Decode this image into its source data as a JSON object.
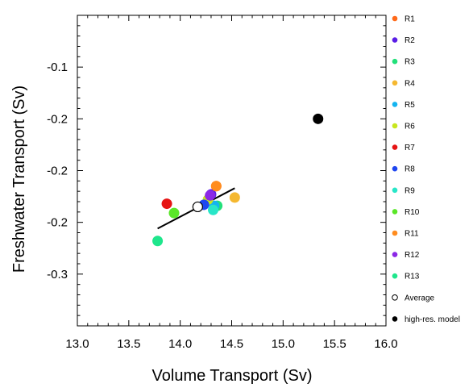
{
  "chart_data": {
    "type": "scatter",
    "xlabel": "Volume Transport (Sv)",
    "ylabel": "Freshwater Transport (Sv)",
    "xlim": [
      13.0,
      16.0
    ],
    "ylim": [
      -0.35,
      -0.05
    ],
    "xticks": [
      13.0,
      13.5,
      14.0,
      14.5,
      15.0,
      15.5,
      16.0
    ],
    "xtick_labels": [
      "13.0",
      "13.5",
      "14.0",
      "14.5",
      "15.0",
      "15.5",
      "16.0"
    ],
    "yticks": [
      -0.1,
      -0.2,
      -0.3
    ],
    "ytick_labels": [
      "-0.1",
      "-0.2",
      "-0.3"
    ],
    "yticks_labeled_extra": [
      -0.15,
      -0.25
    ],
    "ytick_labels_extra": [
      "-0.2",
      "-0.2"
    ],
    "grid": false,
    "legend_position": "right",
    "series": [
      {
        "name": "R1",
        "color": "#ff6a1a",
        "x": 14.35,
        "y": -0.215,
        "style": "filled"
      },
      {
        "name": "R2",
        "color": "#5a1ee6",
        "x": 14.3,
        "y": -0.223,
        "style": "filled"
      },
      {
        "name": "R3",
        "color": "#22e07a",
        "x": 14.36,
        "y": -0.234,
        "style": "filled"
      },
      {
        "name": "R4",
        "color": "#f5b830",
        "x": 14.53,
        "y": -0.226,
        "style": "filled"
      },
      {
        "name": "R5",
        "color": "#14b4f0",
        "x": 14.33,
        "y": -0.234,
        "style": "filled"
      },
      {
        "name": "R6",
        "color": "#c8e61e",
        "x": 14.27,
        "y": -0.228,
        "style": "filled"
      },
      {
        "name": "R7",
        "color": "#e61414",
        "x": 13.87,
        "y": -0.232,
        "style": "filled"
      },
      {
        "name": "R8",
        "color": "#1e46f0",
        "x": 14.23,
        "y": -0.233,
        "style": "filled"
      },
      {
        "name": "R9",
        "color": "#28e6c8",
        "x": 14.32,
        "y": -0.238,
        "style": "filled"
      },
      {
        "name": "R10",
        "color": "#5ae628",
        "x": 13.94,
        "y": -0.241,
        "style": "filled"
      },
      {
        "name": "R11",
        "color": "#ff8c1e",
        "x": 14.35,
        "y": -0.215,
        "style": "filled"
      },
      {
        "name": "R12",
        "color": "#8c28e6",
        "x": 14.29,
        "y": -0.224,
        "style": "filled"
      },
      {
        "name": "R13",
        "color": "#1ee68c",
        "x": 13.78,
        "y": -0.268,
        "style": "filled"
      },
      {
        "name": "Average",
        "color": "#000000",
        "x": 14.17,
        "y": -0.235,
        "style": "open"
      },
      {
        "name": "high-res. model",
        "color": "#000000",
        "x": 15.34,
        "y": -0.15,
        "style": "filled"
      }
    ],
    "fit_line": {
      "x": [
        13.78,
        14.53
      ],
      "y": [
        -0.256,
        -0.217
      ]
    }
  }
}
